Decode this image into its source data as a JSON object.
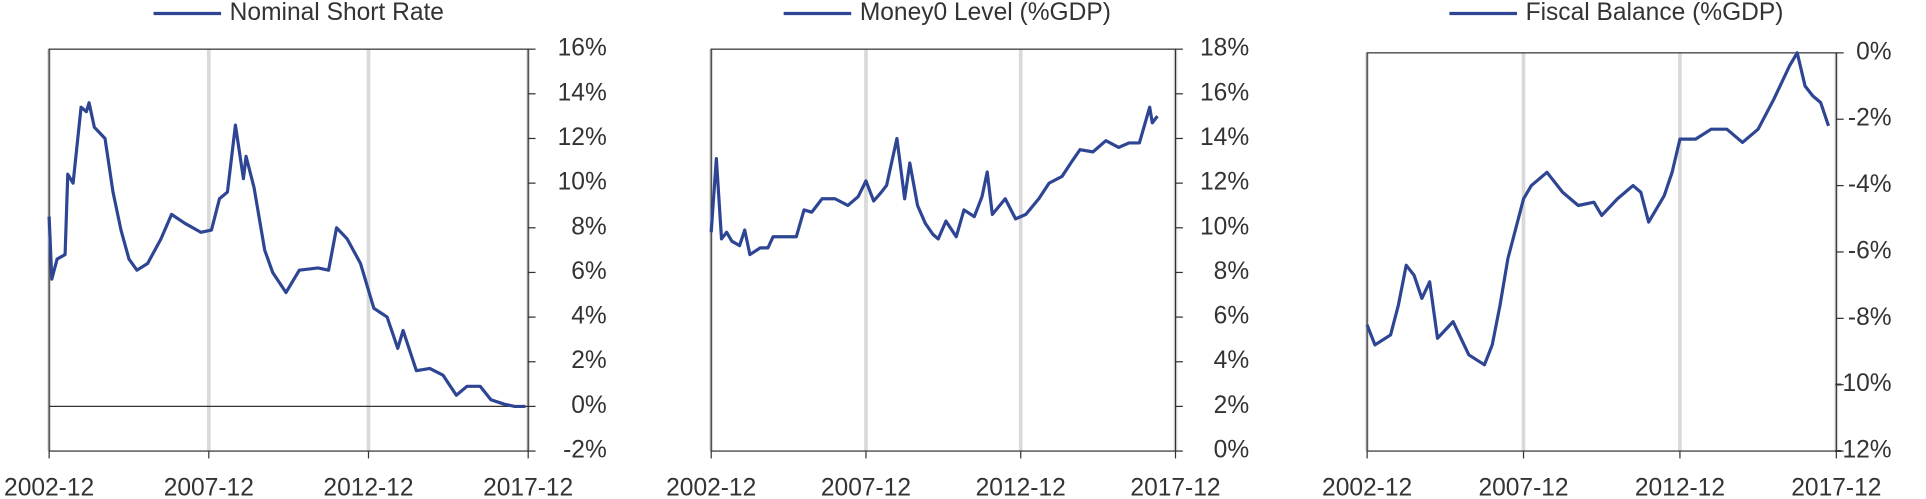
{
  "chart_data": [
    {
      "type": "line",
      "series": [
        {
          "name": "Nominal Short Rate",
          "color": "#2e4593",
          "values": [
            8.5,
            5.7,
            6.6,
            6.8,
            10.4,
            10,
            13.4,
            13.2,
            13.6,
            12.5,
            12,
            9.6,
            7.9,
            6.6,
            6.1,
            6.4,
            7.5,
            8.6,
            8.2,
            7.8,
            7.9,
            9.3,
            9.6,
            12.6,
            10.2,
            11.2,
            9.8,
            7,
            6,
            5.1,
            6.1,
            6.2,
            6.1,
            8,
            7.5,
            6.4,
            4.4,
            4,
            2.6,
            3.4,
            1.6,
            1.7,
            1.4,
            0.5,
            0.9,
            0.9,
            0.3,
            0.1,
            0,
            0
          ]
        }
      ],
      "x": [
        "2002-12",
        "2003-01",
        "2003-03",
        "2003-06",
        "2003-07",
        "2003-09",
        "2003-12",
        "2004-02",
        "2004-03",
        "2004-05",
        "2004-09",
        "2004-12",
        "2005-03",
        "2005-06",
        "2005-09",
        "2006-01",
        "2006-06",
        "2006-10",
        "2007-03",
        "2007-09",
        "2008-01",
        "2008-04",
        "2008-07",
        "2008-10",
        "2009-01",
        "2009-02",
        "2009-05",
        "2009-09",
        "2009-12",
        "2010-05",
        "2010-10",
        "2011-05",
        "2011-09",
        "2011-12",
        "2012-04",
        "2012-09",
        "2013-02",
        "2013-07",
        "2013-11",
        "2014-01",
        "2014-06",
        "2014-11",
        "2015-04",
        "2015-09",
        "2016-01",
        "2016-06",
        "2016-10",
        "2017-03",
        "2017-07",
        "2017-11"
      ],
      "xlim": [
        "2002-12",
        "2017-12"
      ],
      "xticks": [
        "2002-12",
        "2007-12",
        "2012-12",
        "2017-12"
      ],
      "ylim": [
        -2,
        16
      ],
      "yticks": [
        {
          "value": -2,
          "label": "-2%"
        },
        {
          "value": 0,
          "label": "0%"
        },
        {
          "value": 2,
          "label": "2%"
        },
        {
          "value": 4,
          "label": "4%"
        },
        {
          "value": 6,
          "label": "6%"
        },
        {
          "value": 8,
          "label": "8%"
        },
        {
          "value": 10,
          "label": "10%"
        },
        {
          "value": 12,
          "label": "12%"
        },
        {
          "value": 14,
          "label": "14%"
        },
        {
          "value": 16,
          "label": "16%"
        }
      ],
      "grid": true
    },
    {
      "type": "line",
      "series": [
        {
          "name": "Money0 Level (%GDP)",
          "color": "#2e4593",
          "values": [
            9.8,
            13.1,
            9.5,
            9.8,
            9.4,
            9.2,
            9.9,
            8.8,
            9.1,
            9.1,
            9.6,
            9.6,
            9.6,
            10.8,
            10.7,
            11.3,
            11.3,
            11,
            11.4,
            12.1,
            11.2,
            11.6,
            11.9,
            14,
            11.3,
            12.9,
            11,
            10.2,
            9.7,
            9.5,
            10.3,
            9.6,
            10.8,
            10.5,
            11.4,
            12.5,
            10.6,
            11.3,
            10.4,
            10.6,
            11.3,
            12,
            12.3,
            13,
            13.5,
            13.4,
            13.9,
            13.6,
            13.8,
            13.8,
            15.4,
            14.7,
            15
          ]
        }
      ],
      "x": [
        "2002-12",
        "2003-02",
        "2003-04",
        "2003-06",
        "2003-08",
        "2003-11",
        "2004-01",
        "2004-03",
        "2004-07",
        "2004-10",
        "2004-12",
        "2005-05",
        "2005-09",
        "2005-12",
        "2006-03",
        "2006-07",
        "2006-12",
        "2007-05",
        "2007-09",
        "2007-12",
        "2008-03",
        "2008-06",
        "2008-08",
        "2008-12",
        "2009-03",
        "2009-05",
        "2009-08",
        "2009-11",
        "2010-02",
        "2010-04",
        "2010-07",
        "2010-11",
        "2011-02",
        "2011-06",
        "2011-09",
        "2011-11",
        "2012-01",
        "2012-06",
        "2012-10",
        "2013-02",
        "2013-07",
        "2013-11",
        "2014-04",
        "2014-08",
        "2014-11",
        "2015-04",
        "2015-09",
        "2016-02",
        "2016-06",
        "2016-10",
        "2017-02",
        "2017-03",
        "2017-05"
      ],
      "xlim": [
        "2002-12",
        "2017-12"
      ],
      "xticks": [
        "2002-12",
        "2007-12",
        "2012-12",
        "2017-12"
      ],
      "ylim": [
        0,
        18
      ],
      "yticks": [
        {
          "value": 0,
          "label": "0%"
        },
        {
          "value": 2,
          "label": "2%"
        },
        {
          "value": 4,
          "label": "4%"
        },
        {
          "value": 6,
          "label": "6%"
        },
        {
          "value": 8,
          "label": "8%"
        },
        {
          "value": 10,
          "label": "10%"
        },
        {
          "value": 12,
          "label": "12%"
        },
        {
          "value": 14,
          "label": "14%"
        },
        {
          "value": 16,
          "label": "16%"
        },
        {
          "value": 18,
          "label": "18%"
        }
      ],
      "grid": true
    },
    {
      "type": "line",
      "series": [
        {
          "name": "Fiscal Balance (%GDP)",
          "color": "#2e4593",
          "values": [
            -8.2,
            -8.8,
            -8.5,
            -7.6,
            -6.4,
            -6.7,
            -7.4,
            -6.9,
            -8.6,
            -8.1,
            -9.1,
            -9.4,
            -8.8,
            -7.6,
            -6.2,
            -5.3,
            -4.4,
            -4,
            -3.6,
            -4.2,
            -4.6,
            -4.5,
            -4.9,
            -4.4,
            -4,
            -4.2,
            -5.1,
            -4.3,
            -3.6,
            -2.6,
            -2.6,
            -2.3,
            -2.3,
            -2.7,
            -2.3,
            -1.4,
            -0.4,
            0,
            -1,
            -1.3,
            -1.5,
            -2.2
          ]
        }
      ],
      "x": [
        "2002-12",
        "2003-03",
        "2003-09",
        "2003-12",
        "2004-03",
        "2004-06",
        "2004-09",
        "2004-12",
        "2005-03",
        "2005-09",
        "2006-03",
        "2006-09",
        "2006-12",
        "2007-03",
        "2007-06",
        "2007-09",
        "2007-12",
        "2008-03",
        "2008-09",
        "2009-03",
        "2009-09",
        "2010-03",
        "2010-06",
        "2010-12",
        "2011-06",
        "2011-09",
        "2011-12",
        "2012-06",
        "2012-09",
        "2012-12",
        "2013-06",
        "2013-12",
        "2014-06",
        "2014-12",
        "2015-06",
        "2015-12",
        "2016-06",
        "2016-09",
        "2016-12",
        "2017-03",
        "2017-06",
        "2017-09"
      ],
      "xlim": [
        "2002-12",
        "2017-12"
      ],
      "xticks": [
        "2002-12",
        "2007-12",
        "2012-12",
        "2017-12"
      ],
      "ylim": [
        -12,
        0
      ],
      "yticks": [
        {
          "value": -12,
          "label": "-12%"
        },
        {
          "value": -10,
          "label": "-10%"
        },
        {
          "value": -8,
          "label": "-8%"
        },
        {
          "value": -6,
          "label": "-6%"
        },
        {
          "value": -4,
          "label": "-4%"
        },
        {
          "value": -2,
          "label": "-2%"
        },
        {
          "value": 0,
          "label": "0%"
        }
      ],
      "grid": true
    }
  ]
}
